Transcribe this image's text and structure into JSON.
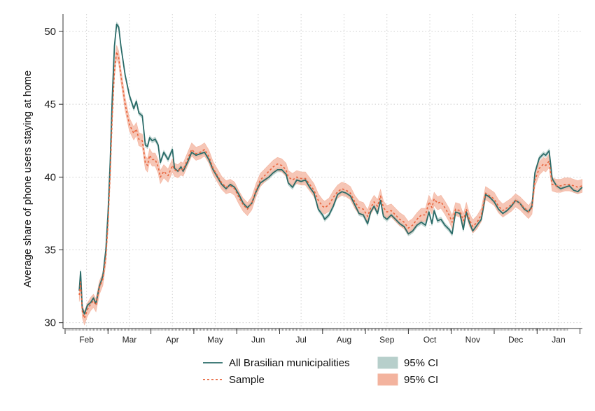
{
  "chart_data": {
    "type": "line",
    "title": "",
    "xlabel": "",
    "ylabel": "Average share of phone users staying at home",
    "ylim": [
      29.6,
      51.2
    ],
    "yticks": [
      30,
      35,
      40,
      45,
      50
    ],
    "grid": true,
    "legend_position": "bottom",
    "x_months": [
      "Feb",
      "Mar",
      "Apr",
      "May",
      "Jun",
      "Jul",
      "Aug",
      "Sep",
      "Oct",
      "Nov",
      "Dec",
      "Jan"
    ],
    "x_range_months": [
      0,
      11.72
    ],
    "series": [
      {
        "name": "All Brasilian municipalities",
        "style": "solid",
        "color": "#2a6b68",
        "points": [
          [
            0.33,
            32.2
          ],
          [
            0.36,
            33.5
          ],
          [
            0.4,
            31.0
          ],
          [
            0.45,
            30.6
          ],
          [
            0.52,
            31.2
          ],
          [
            0.6,
            31.4
          ],
          [
            0.66,
            31.7
          ],
          [
            0.72,
            31.3
          ],
          [
            0.8,
            32.5
          ],
          [
            0.88,
            33.2
          ],
          [
            0.95,
            35.0
          ],
          [
            1.0,
            37.5
          ],
          [
            1.05,
            41.0
          ],
          [
            1.1,
            45.5
          ],
          [
            1.15,
            49.0
          ],
          [
            1.2,
            50.5
          ],
          [
            1.25,
            50.3
          ],
          [
            1.3,
            49.0
          ],
          [
            1.4,
            47.0
          ],
          [
            1.5,
            45.6
          ],
          [
            1.6,
            44.7
          ],
          [
            1.66,
            45.2
          ],
          [
            1.72,
            44.4
          ],
          [
            1.8,
            44.2
          ],
          [
            1.87,
            42.2
          ],
          [
            1.92,
            42.1
          ],
          [
            1.97,
            42.7
          ],
          [
            2.03,
            42.5
          ],
          [
            2.1,
            42.6
          ],
          [
            2.17,
            42.2
          ],
          [
            2.22,
            41.0
          ],
          [
            2.3,
            41.7
          ],
          [
            2.4,
            41.2
          ],
          [
            2.5,
            41.9
          ],
          [
            2.55,
            40.6
          ],
          [
            2.63,
            40.4
          ],
          [
            2.7,
            40.7
          ],
          [
            2.75,
            40.4
          ],
          [
            2.85,
            41.0
          ],
          [
            2.95,
            41.7
          ],
          [
            3.05,
            41.5
          ],
          [
            3.15,
            41.6
          ],
          [
            3.25,
            41.7
          ],
          [
            3.35,
            41.2
          ],
          [
            3.45,
            40.5
          ],
          [
            3.55,
            40.0
          ],
          [
            3.65,
            39.5
          ],
          [
            3.75,
            39.2
          ],
          [
            3.85,
            39.5
          ],
          [
            3.95,
            39.3
          ],
          [
            4.05,
            38.8
          ],
          [
            4.15,
            38.2
          ],
          [
            4.25,
            37.9
          ],
          [
            4.35,
            38.2
          ],
          [
            4.45,
            39.0
          ],
          [
            4.55,
            39.6
          ],
          [
            4.65,
            39.8
          ],
          [
            4.75,
            40.0
          ],
          [
            4.85,
            40.3
          ],
          [
            4.95,
            40.5
          ],
          [
            5.05,
            40.5
          ],
          [
            5.15,
            40.2
          ],
          [
            5.2,
            39.6
          ],
          [
            5.3,
            39.3
          ],
          [
            5.4,
            39.8
          ],
          [
            5.5,
            39.7
          ],
          [
            5.6,
            39.8
          ],
          [
            5.7,
            39.3
          ],
          [
            5.8,
            38.9
          ],
          [
            5.9,
            37.8
          ],
          [
            6.0,
            37.4
          ],
          [
            6.05,
            37.1
          ],
          [
            6.15,
            37.4
          ],
          [
            6.25,
            38.0
          ],
          [
            6.35,
            38.8
          ],
          [
            6.45,
            39.0
          ],
          [
            6.55,
            38.9
          ],
          [
            6.65,
            38.7
          ],
          [
            6.75,
            38.1
          ],
          [
            6.85,
            37.5
          ],
          [
            6.95,
            37.4
          ],
          [
            7.05,
            36.8
          ],
          [
            7.12,
            37.6
          ],
          [
            7.2,
            38.0
          ],
          [
            7.28,
            37.5
          ],
          [
            7.35,
            38.4
          ],
          [
            7.42,
            37.3
          ],
          [
            7.5,
            37.1
          ],
          [
            7.6,
            37.4
          ],
          [
            7.7,
            37.1
          ],
          [
            7.8,
            36.8
          ],
          [
            7.9,
            36.6
          ],
          [
            8.0,
            36.1
          ],
          [
            8.1,
            36.3
          ],
          [
            8.2,
            36.7
          ],
          [
            8.3,
            36.9
          ],
          [
            8.4,
            36.7
          ],
          [
            8.48,
            37.6
          ],
          [
            8.55,
            36.8
          ],
          [
            8.6,
            37.7
          ],
          [
            8.68,
            37.0
          ],
          [
            8.76,
            37.1
          ],
          [
            8.85,
            36.7
          ],
          [
            8.95,
            36.4
          ],
          [
            9.02,
            36.1
          ],
          [
            9.1,
            37.6
          ],
          [
            9.2,
            37.5
          ],
          [
            9.28,
            36.4
          ],
          [
            9.35,
            37.6
          ],
          [
            9.42,
            36.9
          ],
          [
            9.5,
            36.3
          ],
          [
            9.6,
            36.7
          ],
          [
            9.7,
            37.1
          ],
          [
            9.8,
            38.8
          ],
          [
            9.9,
            38.6
          ],
          [
            10.0,
            38.3
          ],
          [
            10.1,
            37.8
          ],
          [
            10.2,
            37.5
          ],
          [
            10.3,
            37.7
          ],
          [
            10.4,
            38.0
          ],
          [
            10.5,
            38.4
          ],
          [
            10.6,
            38.2
          ],
          [
            10.7,
            37.8
          ],
          [
            10.8,
            37.6
          ],
          [
            10.88,
            38.0
          ],
          [
            10.95,
            40.3
          ],
          [
            11.05,
            41.3
          ],
          [
            11.15,
            41.6
          ],
          [
            11.2,
            41.5
          ],
          [
            11.28,
            41.8
          ],
          [
            11.35,
            39.9
          ],
          [
            11.45,
            39.4
          ],
          [
            11.55,
            39.2
          ],
          [
            11.65,
            39.3
          ],
          [
            11.75,
            39.4
          ],
          [
            11.85,
            39.1
          ],
          [
            11.95,
            39.0
          ],
          [
            12.05,
            39.3
          ]
        ]
      },
      {
        "name": "Sample",
        "style": "dashed",
        "color": "#e8643c",
        "points": [
          [
            0.33,
            31.9
          ],
          [
            0.36,
            32.8
          ],
          [
            0.4,
            30.8
          ],
          [
            0.45,
            30.3
          ],
          [
            0.52,
            30.9
          ],
          [
            0.6,
            31.3
          ],
          [
            0.66,
            31.5
          ],
          [
            0.72,
            31.2
          ],
          [
            0.8,
            32.4
          ],
          [
            0.88,
            33.0
          ],
          [
            0.95,
            34.5
          ],
          [
            1.0,
            36.8
          ],
          [
            1.05,
            40.2
          ],
          [
            1.1,
            44.2
          ],
          [
            1.15,
            47.3
          ],
          [
            1.2,
            48.6
          ],
          [
            1.25,
            48.2
          ],
          [
            1.3,
            47.0
          ],
          [
            1.4,
            45.0
          ],
          [
            1.5,
            43.6
          ],
          [
            1.6,
            43.0
          ],
          [
            1.66,
            43.3
          ],
          [
            1.72,
            42.6
          ],
          [
            1.8,
            42.5
          ],
          [
            1.87,
            41.0
          ],
          [
            1.92,
            40.8
          ],
          [
            1.97,
            41.5
          ],
          [
            2.03,
            41.2
          ],
          [
            2.1,
            41.2
          ],
          [
            2.17,
            40.7
          ],
          [
            2.22,
            40.0
          ],
          [
            2.3,
            40.4
          ],
          [
            2.4,
            40.1
          ],
          [
            2.5,
            40.8
          ],
          [
            2.55,
            40.5
          ],
          [
            2.63,
            40.4
          ],
          [
            2.7,
            40.6
          ],
          [
            2.75,
            40.5
          ],
          [
            2.85,
            41.2
          ],
          [
            2.95,
            41.9
          ],
          [
            3.05,
            41.6
          ],
          [
            3.15,
            41.7
          ],
          [
            3.25,
            41.9
          ],
          [
            3.35,
            41.4
          ],
          [
            3.45,
            40.6
          ],
          [
            3.55,
            40.1
          ],
          [
            3.65,
            39.6
          ],
          [
            3.75,
            39.3
          ],
          [
            3.85,
            39.4
          ],
          [
            3.95,
            39.2
          ],
          [
            4.05,
            38.6
          ],
          [
            4.15,
            38.1
          ],
          [
            4.25,
            37.8
          ],
          [
            4.35,
            38.2
          ],
          [
            4.45,
            39.1
          ],
          [
            4.55,
            39.8
          ],
          [
            4.65,
            40.1
          ],
          [
            4.75,
            40.4
          ],
          [
            4.85,
            40.7
          ],
          [
            4.95,
            40.9
          ],
          [
            5.05,
            40.8
          ],
          [
            5.15,
            40.5
          ],
          [
            5.2,
            40.0
          ],
          [
            5.3,
            39.8
          ],
          [
            5.4,
            40.0
          ],
          [
            5.5,
            39.9
          ],
          [
            5.6,
            39.9
          ],
          [
            5.7,
            39.5
          ],
          [
            5.8,
            39.1
          ],
          [
            5.9,
            38.4
          ],
          [
            6.0,
            38.0
          ],
          [
            6.05,
            37.9
          ],
          [
            6.15,
            38.1
          ],
          [
            6.25,
            38.6
          ],
          [
            6.35,
            39.0
          ],
          [
            6.45,
            39.2
          ],
          [
            6.55,
            39.1
          ],
          [
            6.65,
            38.9
          ],
          [
            6.75,
            38.3
          ],
          [
            6.85,
            37.9
          ],
          [
            6.95,
            37.8
          ],
          [
            7.05,
            37.3
          ],
          [
            7.12,
            37.9
          ],
          [
            7.2,
            38.3
          ],
          [
            7.28,
            38.0
          ],
          [
            7.35,
            38.7
          ],
          [
            7.42,
            37.9
          ],
          [
            7.5,
            37.6
          ],
          [
            7.6,
            37.7
          ],
          [
            7.7,
            37.4
          ],
          [
            7.8,
            37.1
          ],
          [
            7.9,
            36.9
          ],
          [
            8.0,
            36.5
          ],
          [
            8.1,
            36.7
          ],
          [
            8.2,
            37.1
          ],
          [
            8.3,
            37.4
          ],
          [
            8.4,
            37.4
          ],
          [
            8.48,
            38.3
          ],
          [
            8.55,
            37.9
          ],
          [
            8.6,
            38.5
          ],
          [
            8.68,
            38.2
          ],
          [
            8.76,
            38.3
          ],
          [
            8.85,
            37.9
          ],
          [
            8.95,
            37.4
          ],
          [
            9.02,
            36.9
          ],
          [
            9.1,
            37.8
          ],
          [
            9.2,
            37.7
          ],
          [
            9.28,
            37.0
          ],
          [
            9.35,
            37.8
          ],
          [
            9.42,
            37.1
          ],
          [
            9.5,
            36.6
          ],
          [
            9.6,
            36.9
          ],
          [
            9.7,
            37.4
          ],
          [
            9.8,
            38.9
          ],
          [
            9.9,
            38.7
          ],
          [
            10.0,
            38.5
          ],
          [
            10.1,
            38.0
          ],
          [
            10.2,
            37.7
          ],
          [
            10.3,
            37.9
          ],
          [
            10.4,
            38.1
          ],
          [
            10.5,
            38.4
          ],
          [
            10.6,
            38.2
          ],
          [
            10.7,
            37.9
          ],
          [
            10.8,
            37.6
          ],
          [
            10.88,
            37.9
          ],
          [
            10.95,
            39.8
          ],
          [
            11.05,
            40.6
          ],
          [
            11.15,
            40.9
          ],
          [
            11.2,
            40.8
          ],
          [
            11.28,
            41.1
          ],
          [
            11.35,
            39.5
          ],
          [
            11.45,
            39.4
          ],
          [
            11.55,
            39.4
          ],
          [
            11.65,
            39.5
          ],
          [
            11.75,
            39.5
          ],
          [
            11.85,
            39.4
          ],
          [
            11.95,
            39.3
          ],
          [
            12.05,
            39.4
          ]
        ]
      }
    ],
    "confidence_bands": [
      {
        "name": "95% CI",
        "for_series": "All Brasilian municipalities",
        "half_width": 0.15,
        "color": "#b7cfcb"
      },
      {
        "name": "95% CI",
        "for_series": "Sample",
        "half_width": 0.45,
        "color": "#f3b39e"
      }
    ]
  },
  "legend": {
    "items": [
      {
        "label": "All Brasilian municipalities",
        "kind": "line-solid",
        "color": "#2a6b68"
      },
      {
        "label": "95% CI",
        "kind": "area",
        "color": "#b7cfcb"
      },
      {
        "label": "Sample",
        "kind": "line-dashed",
        "color": "#e8643c"
      },
      {
        "label": "95% CI",
        "kind": "area",
        "color": "#f3b39e"
      }
    ]
  }
}
